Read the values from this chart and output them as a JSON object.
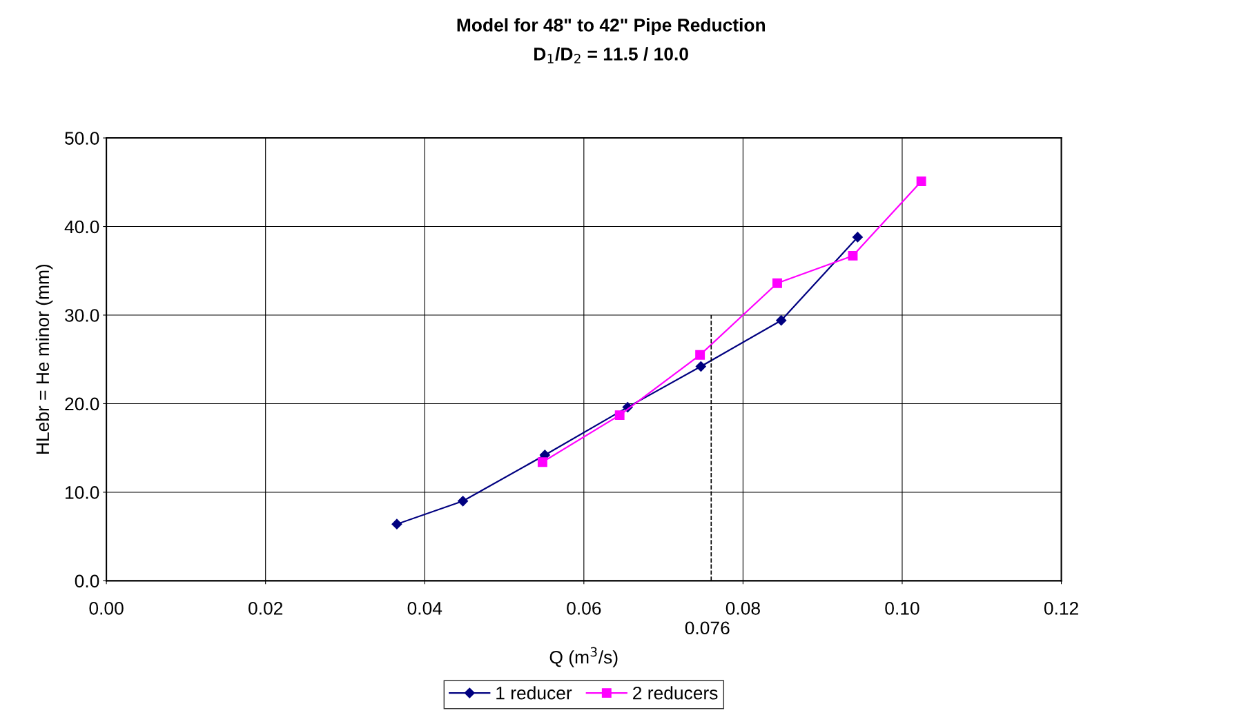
{
  "chart_data": {
    "type": "line",
    "title": "Model for 48\" to 42\" Pipe Reduction",
    "subtitle": "D$_{1}$/D$_{2}$ = 11.5 / 10.0",
    "xlabel": "Q (m$^{3}$/s)",
    "ylabel": "HLebr = He minor (mm)",
    "xlim": [
      0,
      0.12
    ],
    "ylim": [
      0,
      50
    ],
    "xticks": [
      {
        "value": 0,
        "label": "0.00"
      },
      {
        "value": 0.02,
        "label": "0.02"
      },
      {
        "value": 0.04,
        "label": "0.04"
      },
      {
        "value": 0.06,
        "label": "0.06"
      },
      {
        "value": 0.08,
        "label": "0.08"
      },
      {
        "value": 0.1,
        "label": "0.10"
      },
      {
        "value": 0.12,
        "label": "0.12"
      }
    ],
    "yticks": [
      {
        "value": 0,
        "label": "0.0"
      },
      {
        "value": 10,
        "label": "10.0"
      },
      {
        "value": 20,
        "label": "20.0"
      },
      {
        "value": 30,
        "label": "30.0"
      },
      {
        "value": 40,
        "label": "40.0"
      },
      {
        "value": 50,
        "label": "50.0"
      }
    ],
    "grid": true,
    "legend": "bottom",
    "series": [
      {
        "name": "1 reducer",
        "color": "#000080",
        "marker": "diamond",
        "x": [
          0.0365,
          0.0448,
          0.0551,
          0.0655,
          0.0747,
          0.0848,
          0.0944
        ],
        "values": [
          6.4,
          9.0,
          14.2,
          19.6,
          24.2,
          29.4,
          38.8
        ]
      },
      {
        "name": "2 reducers",
        "color": "#ff00ff",
        "marker": "square",
        "x": [
          0.0548,
          0.0645,
          0.0746,
          0.0843,
          0.0938,
          0.1024
        ],
        "values": [
          13.4,
          18.7,
          25.5,
          33.6,
          36.7,
          45.1
        ]
      },
      {
        "color": "#000000",
        "marker": "none",
        "line_style": "dashed",
        "x": [
          0.076,
          0.076
        ],
        "values": [
          0,
          30
        ]
      }
    ],
    "annotations": [
      {
        "text": "0.076",
        "x": 0.076,
        "y": 0
      }
    ]
  }
}
